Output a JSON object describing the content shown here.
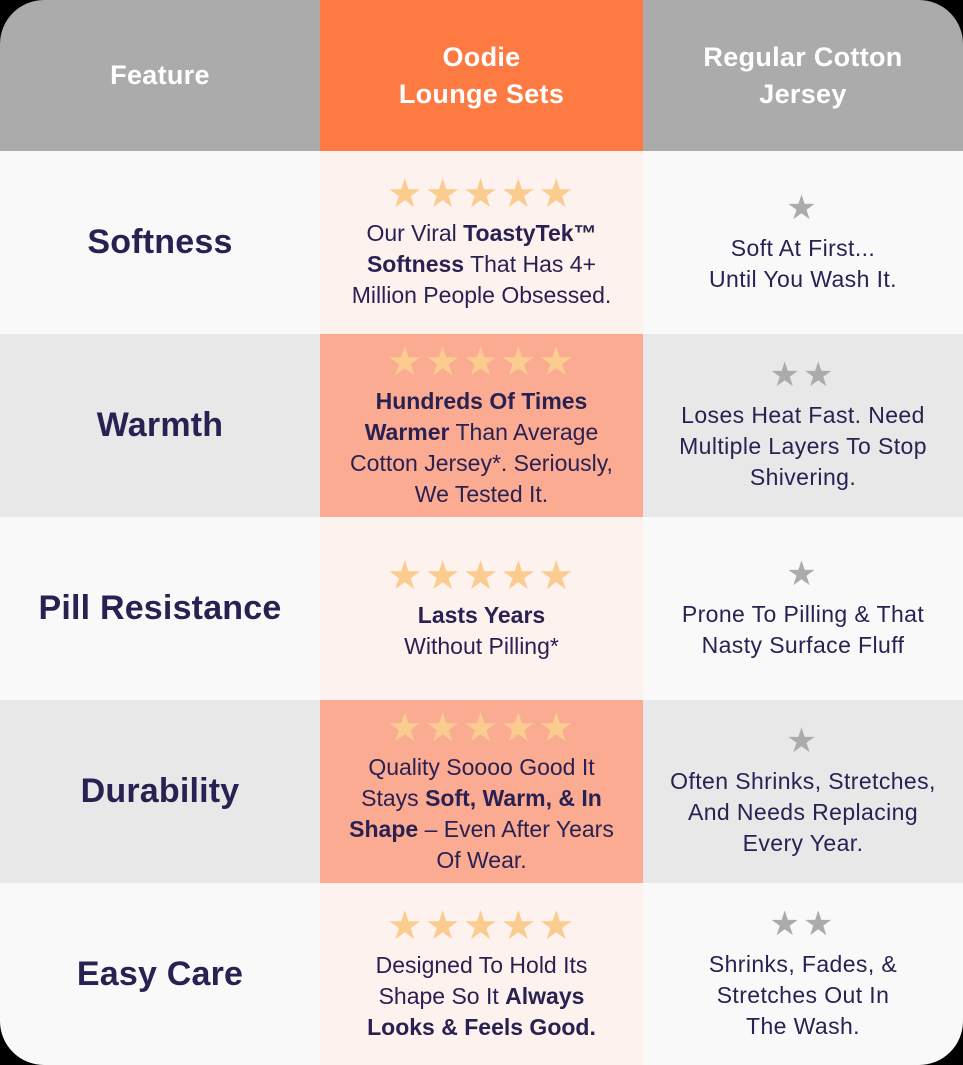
{
  "colors": {
    "header_gray": "#ABABAB",
    "accent_orange": "#FD7B43",
    "row_light": "#F9F9F9",
    "row_dark": "#E8E8E8",
    "oodie_light": "#FDF2EE",
    "oodie_dark": "#FAAB91",
    "star_gold": "#FBCC90",
    "star_gray": "#ABABAB",
    "text_navy": "#2A2153",
    "header_text": "#FFFFFF"
  },
  "header": {
    "feature_label": "Feature",
    "oodie_label": "Oodie\nLounge Sets",
    "cotton_label": "Regular Cotton\nJersey"
  },
  "rows": [
    {
      "feature": "Softness",
      "oodie": {
        "stars": 5,
        "segments": [
          {
            "text": "Our Viral ",
            "bold": false
          },
          {
            "text": "ToastyTek™\nSoftness",
            "bold": true
          },
          {
            "text": " That Has 4+\nMillion People Obsessed.",
            "bold": false
          }
        ]
      },
      "cotton": {
        "stars": 1,
        "text": "Soft At First...\nUntil You Wash It."
      }
    },
    {
      "feature": "Warmth",
      "oodie": {
        "stars": 5,
        "segments": [
          {
            "text": "Hundreds Of Times\nWarmer",
            "bold": true
          },
          {
            "text": " Than Average\nCotton Jersey*. Seriously,\nWe Tested It.",
            "bold": false
          }
        ]
      },
      "cotton": {
        "stars": 2,
        "text": "Loses Heat Fast. Need\nMultiple Layers To Stop\nShivering."
      }
    },
    {
      "feature": "Pill Resistance",
      "oodie": {
        "stars": 5,
        "segments": [
          {
            "text": "Lasts Years",
            "bold": true
          },
          {
            "text": "\nWithout Pilling*",
            "bold": false
          }
        ]
      },
      "cotton": {
        "stars": 1,
        "text": "Prone To Pilling & That\nNasty Surface Fluff"
      }
    },
    {
      "feature": "Durability",
      "oodie": {
        "stars": 5,
        "segments": [
          {
            "text": "Quality Soooo Good It\nStays ",
            "bold": false
          },
          {
            "text": "Soft, Warm, & In\nShape",
            "bold": true
          },
          {
            "text": " – Even After Years\nOf Wear.",
            "bold": false
          }
        ]
      },
      "cotton": {
        "stars": 1,
        "text": "Often Shrinks, Stretches,\nAnd Needs Replacing\nEvery Year."
      }
    },
    {
      "feature": "Easy Care",
      "oodie": {
        "stars": 5,
        "segments": [
          {
            "text": "Designed To Hold Its\nShape So It ",
            "bold": false
          },
          {
            "text": "Always\nLooks & Feels Good.",
            "bold": true
          }
        ]
      },
      "cotton": {
        "stars": 2,
        "text": "Shrinks, Fades, &\nStretches Out In\nThe Wash."
      }
    }
  ],
  "star_glyph": "★",
  "chart_data": {
    "type": "table",
    "title": "Oodie Lounge Sets vs Regular Cotton Jersey feature comparison",
    "columns": [
      "Feature",
      "Oodie Lounge Sets",
      "Regular Cotton Jersey"
    ],
    "rows": [
      {
        "feature": "Softness",
        "oodie_rating": 5,
        "oodie_text": "Our Viral ToastyTek™ Softness That Has 4+ Million People Obsessed.",
        "cotton_rating": 1,
        "cotton_text": "Soft At First... Until You Wash It."
      },
      {
        "feature": "Warmth",
        "oodie_rating": 5,
        "oodie_text": "Hundreds Of Times Warmer Than Average Cotton Jersey*. Seriously, We Tested It.",
        "cotton_rating": 2,
        "cotton_text": "Loses Heat Fast. Need Multiple Layers To Stop Shivering."
      },
      {
        "feature": "Pill Resistance",
        "oodie_rating": 5,
        "oodie_text": "Lasts Years Without Pilling*",
        "cotton_rating": 1,
        "cotton_text": "Prone To Pilling & That Nasty Surface Fluff"
      },
      {
        "feature": "Durability",
        "oodie_rating": 5,
        "oodie_text": "Quality Soooo Good It Stays Soft, Warm, & In Shape – Even After Years Of Wear.",
        "cotton_rating": 1,
        "cotton_text": "Often Shrinks, Stretches, And Needs Replacing Every Year."
      },
      {
        "feature": "Easy Care",
        "oodie_rating": 5,
        "oodie_text": "Designed To Hold Its Shape So It Always Looks & Feels Good.",
        "cotton_rating": 2,
        "cotton_text": "Shrinks, Fades, & Stretches Out In The Wash."
      }
    ],
    "rating_scale": [
      0,
      5
    ],
    "legend_position": "none",
    "grid": false
  }
}
